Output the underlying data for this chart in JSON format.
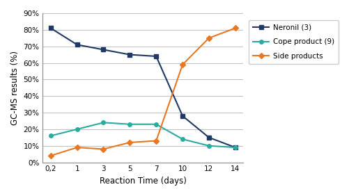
{
  "x_labels": [
    "0,2",
    "1",
    "3",
    "5",
    "7",
    "10",
    "12",
    "14"
  ],
  "x_positions": [
    0,
    1,
    2,
    3,
    4,
    5,
    6,
    7
  ],
  "neronil": [
    0.81,
    0.71,
    0.68,
    0.65,
    0.64,
    0.28,
    0.15,
    0.09
  ],
  "cope": [
    0.16,
    0.2,
    0.24,
    0.23,
    0.23,
    0.14,
    0.1,
    0.09
  ],
  "side": [
    0.04,
    0.09,
    0.08,
    0.12,
    0.13,
    0.59,
    0.75,
    0.81
  ],
  "neronil_color": "#1F3864",
  "cope_color": "#2AABA0",
  "side_color": "#E87722",
  "neronil_label": "Neronil (3)",
  "cope_label": "Cope product (9)",
  "side_label": "Side products",
  "xlabel": "Reaction Time (days)",
  "ylabel": "GC-MS results (%)",
  "ylim": [
    0,
    0.9
  ],
  "yticks": [
    0.0,
    0.1,
    0.2,
    0.3,
    0.4,
    0.5,
    0.6,
    0.7,
    0.8,
    0.9
  ],
  "background_color": "#FFFFFF",
  "grid_color": "#C0C0C0"
}
